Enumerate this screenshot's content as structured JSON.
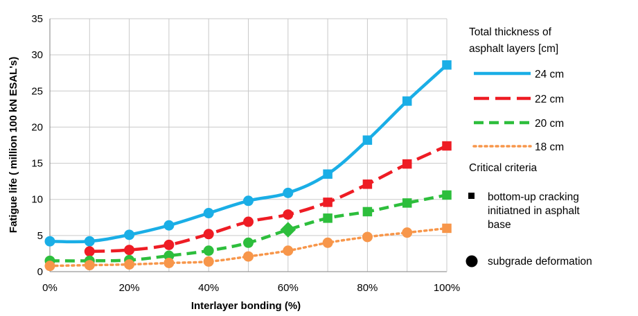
{
  "chart_data": {
    "type": "line",
    "xlabel": "Interlayer bonding (%)",
    "ylabel": "Fatigue life ( million 100 kN ESAL's)",
    "x": [
      0,
      10,
      20,
      30,
      40,
      50,
      60,
      70,
      80,
      90,
      100
    ],
    "x_tick_labels": [
      "0%",
      "20%",
      "40%",
      "60%",
      "80%",
      "100%"
    ],
    "x_tick_values": [
      0,
      20,
      40,
      60,
      80,
      100
    ],
    "xlim": [
      0,
      100
    ],
    "ylim": [
      0,
      35
    ],
    "y_ticks": [
      0,
      5,
      10,
      15,
      20,
      25,
      30,
      35
    ],
    "grid": true,
    "legend_position": "right",
    "legend_title": "Total thickness of asphalt layers [cm]",
    "series": [
      {
        "name": "24 cm",
        "color": "#1aaee6",
        "dash": "solid",
        "values": [
          4.2,
          4.2,
          5.1,
          6.4,
          8.1,
          9.8,
          10.9,
          13.5,
          18.2,
          23.6,
          28.6
        ],
        "markers": [
          "circle",
          "circle",
          "circle",
          "circle",
          "circle",
          "circle",
          "circle",
          "square",
          "square",
          "square",
          "square"
        ]
      },
      {
        "name": "22 cm",
        "color": "#ee1c24",
        "dash": "long-dash",
        "values": [
          null,
          2.8,
          3.0,
          3.7,
          5.2,
          6.9,
          7.9,
          9.6,
          12.1,
          14.9,
          17.4
        ],
        "markers": [
          "circle",
          "circle",
          "circle",
          "circle",
          "circle",
          "circle",
          "circle",
          "square",
          "square",
          "square",
          "square"
        ]
      },
      {
        "name": "20 cm",
        "color": "#2dbe3c",
        "dash": "dash",
        "values": [
          1.5,
          1.5,
          1.6,
          2.2,
          2.9,
          4.0,
          5.8,
          7.4,
          8.3,
          9.5,
          10.6
        ],
        "markers": [
          "circle",
          "circle",
          "circle",
          "circle",
          "circle",
          "circle",
          "diamond",
          "square",
          "square",
          "square",
          "square"
        ]
      },
      {
        "name": "18 cm",
        "color": "#f7964a",
        "dash": "dot",
        "values": [
          0.8,
          0.9,
          1.0,
          1.2,
          1.4,
          2.1,
          2.9,
          4.0,
          4.8,
          5.4,
          6.0
        ],
        "markers": [
          "circle",
          "circle",
          "circle",
          "circle",
          "circle",
          "circle",
          "circle",
          "circle",
          "circle",
          "circle",
          "square"
        ]
      }
    ],
    "criteria_title": "Critical criteria",
    "criteria": [
      {
        "marker": "square",
        "lines": [
          "bottom-up cracking",
          "initiatned in asphalt",
          "base"
        ]
      },
      {
        "marker": "circle",
        "lines": [
          "subgrade deformation"
        ]
      }
    ]
  }
}
